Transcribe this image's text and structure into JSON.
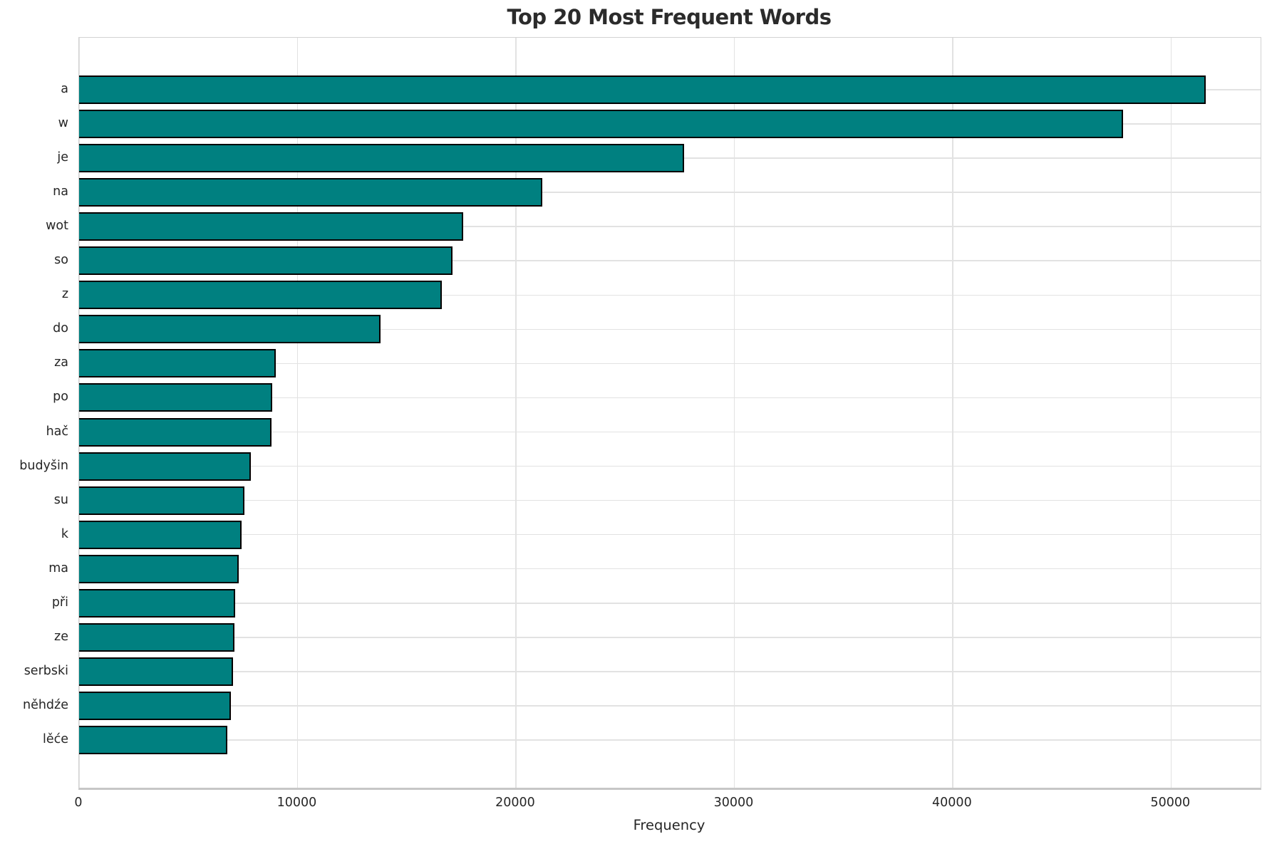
{
  "chart_data": {
    "type": "bar",
    "orientation": "horizontal",
    "title": "Top 20 Most Frequent Words",
    "xlabel": "Frequency",
    "ylabel": "",
    "categories": [
      "a",
      "w",
      "je",
      "na",
      "wot",
      "so",
      "z",
      "do",
      "za",
      "po",
      "hač",
      "budyšin",
      "su",
      "k",
      "ma",
      "při",
      "ze",
      "serbski",
      "něhdźe",
      "lěće"
    ],
    "values": [
      51600,
      47800,
      27700,
      21200,
      17600,
      17100,
      16600,
      13800,
      9000,
      8850,
      8800,
      7870,
      7580,
      7450,
      7320,
      7160,
      7100,
      7050,
      6950,
      6800
    ],
    "xlim": [
      0,
      54100
    ],
    "xticks": [
      0,
      10000,
      20000,
      30000,
      40000,
      50000
    ],
    "xtick_labels": [
      "0",
      "10000",
      "20000",
      "30000",
      "40000",
      "50000"
    ],
    "grid": true,
    "legend": null,
    "colors": {
      "bar_fill": "#008080",
      "bar_edge": "#000000",
      "grid": "#e2e2e2",
      "spine": "#d2d2d2",
      "text": "#262626",
      "title": "#2b2b2b",
      "background": "#ffffff"
    }
  }
}
